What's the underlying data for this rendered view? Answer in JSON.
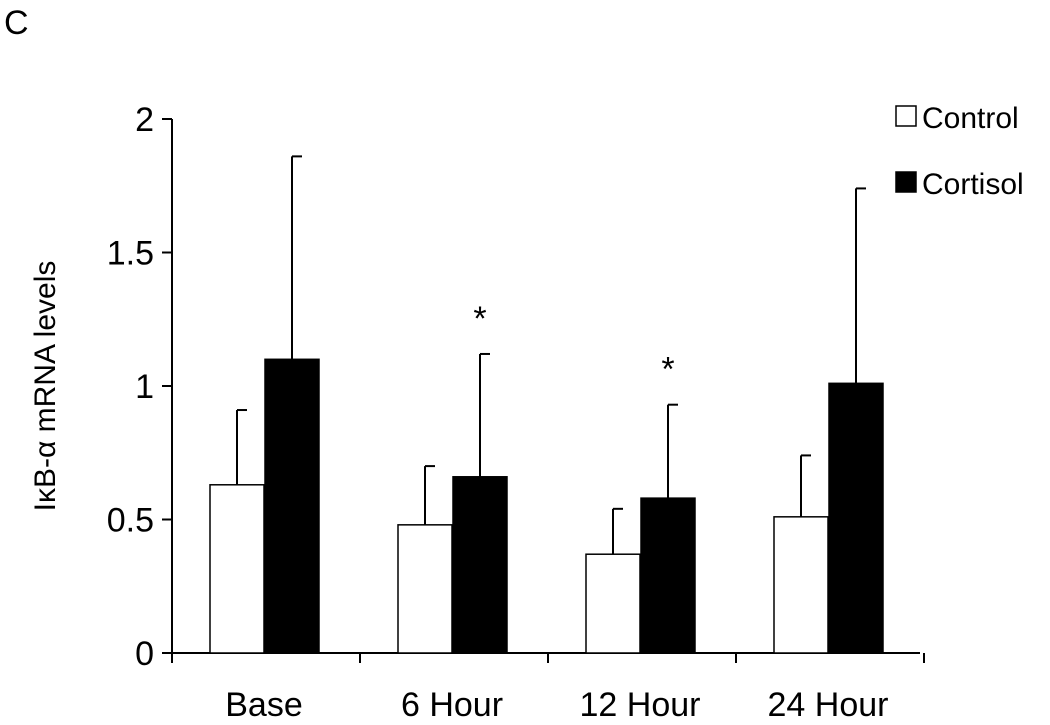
{
  "panel_label": "C",
  "chart_data": {
    "type": "bar",
    "categories": [
      "Base",
      "6 Hour",
      "12 Hour",
      "24 Hour"
    ],
    "series": [
      {
        "name": "Control",
        "color": "#ffffff",
        "values": [
          0.63,
          0.48,
          0.37,
          0.51
        ],
        "errors": [
          0.28,
          0.22,
          0.17,
          0.23
        ]
      },
      {
        "name": "Cortisol",
        "color": "#000000",
        "values": [
          1.1,
          0.66,
          0.58,
          1.01
        ],
        "errors": [
          0.76,
          0.46,
          0.35,
          0.73
        ]
      }
    ],
    "significance": [
      "",
      "*",
      "*",
      ""
    ],
    "ylabel": "IκB-α mRNA levels",
    "xlabel": "",
    "ylim": [
      0,
      2
    ],
    "yticks": [
      {
        "value": 0,
        "label": "0"
      },
      {
        "value": 0.5,
        "label": "0.5"
      },
      {
        "value": 1,
        "label": "1"
      },
      {
        "value": 1.5,
        "label": "1.5"
      },
      {
        "value": 2,
        "label": "2"
      }
    ],
    "grid": false,
    "legend_position": "top-right"
  }
}
